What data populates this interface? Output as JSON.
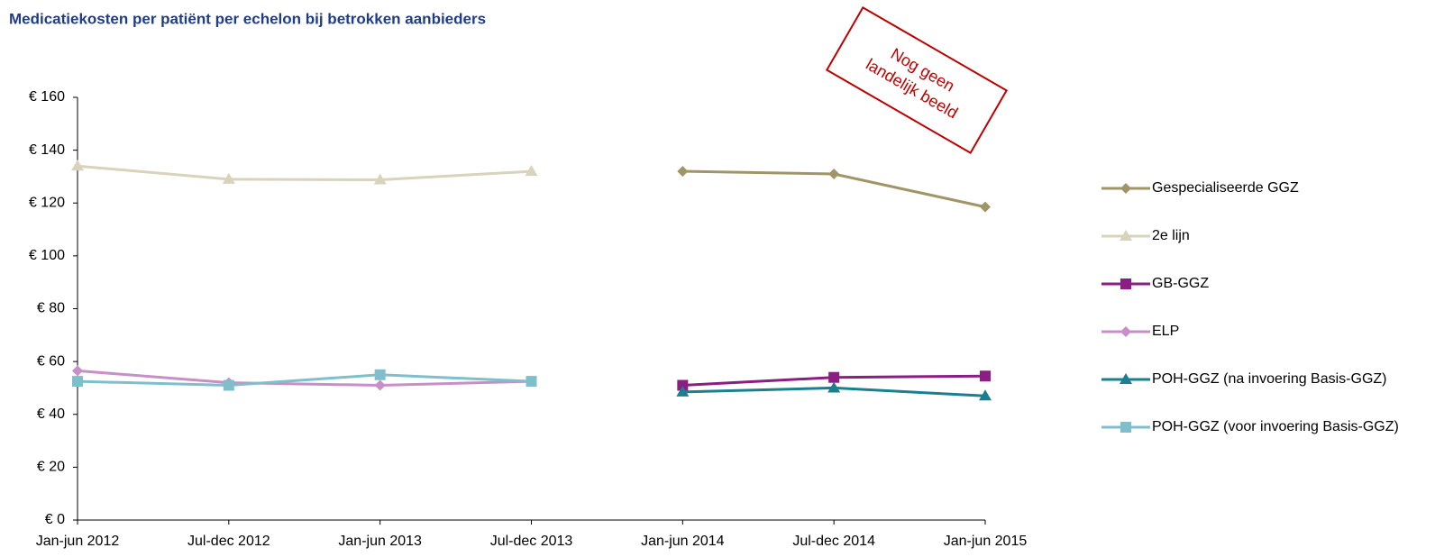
{
  "chart_data": {
    "type": "line",
    "title": "Medicatiekosten per patiënt per echelon bij betrokken aanbieders",
    "annotation": [
      "Nog geen",
      "landelijk beeld"
    ],
    "categories": [
      "Jan-jun 2012",
      "Jul-dec 2012",
      "Jan-jun 2013",
      "Jul-dec 2013",
      "Jan-jun 2014",
      "Jul-dec 2014",
      "Jan-jun 2015"
    ],
    "ylim": [
      0,
      160
    ],
    "yticks": [
      {
        "value": 0,
        "label": "€ 0"
      },
      {
        "value": 20,
        "label": "€ 20"
      },
      {
        "value": 40,
        "label": "€ 40"
      },
      {
        "value": 60,
        "label": "€ 60"
      },
      {
        "value": 80,
        "label": "€ 80"
      },
      {
        "value": 100,
        "label": "€ 100"
      },
      {
        "value": 120,
        "label": "€ 120"
      },
      {
        "value": 140,
        "label": "€ 140"
      },
      {
        "value": 160,
        "label": "€ 160"
      }
    ],
    "grid": false,
    "legend": "right",
    "series": [
      {
        "name": "Gespecialiseerde GGZ",
        "color": "#a09567",
        "marker": "diamond",
        "values": [
          null,
          null,
          null,
          null,
          132,
          131,
          118.5
        ]
      },
      {
        "name": "2e lijn",
        "color": "#d8d3bb",
        "marker": "triangle",
        "values": [
          134,
          129,
          128.8,
          132,
          null,
          null,
          null
        ]
      },
      {
        "name": "GB-GGZ",
        "color": "#8b1e82",
        "marker": "square",
        "values": [
          null,
          null,
          null,
          null,
          51,
          54,
          54.5
        ]
      },
      {
        "name": "ELP",
        "color": "#c88fc7",
        "marker": "diamond",
        "values": [
          56.5,
          52,
          51,
          52.5,
          null,
          null,
          null
        ]
      },
      {
        "name": "POH-GGZ (na invoering Basis-GGZ)",
        "color": "#1a7f8e",
        "marker": "triangle",
        "values": [
          null,
          null,
          null,
          null,
          48.5,
          50,
          47
        ]
      },
      {
        "name": "POH-GGZ (voor invoering Basis-GGZ)",
        "color": "#7fbfcc",
        "marker": "square",
        "values": [
          52.5,
          51,
          55,
          52.5,
          null,
          null,
          null
        ]
      }
    ]
  }
}
